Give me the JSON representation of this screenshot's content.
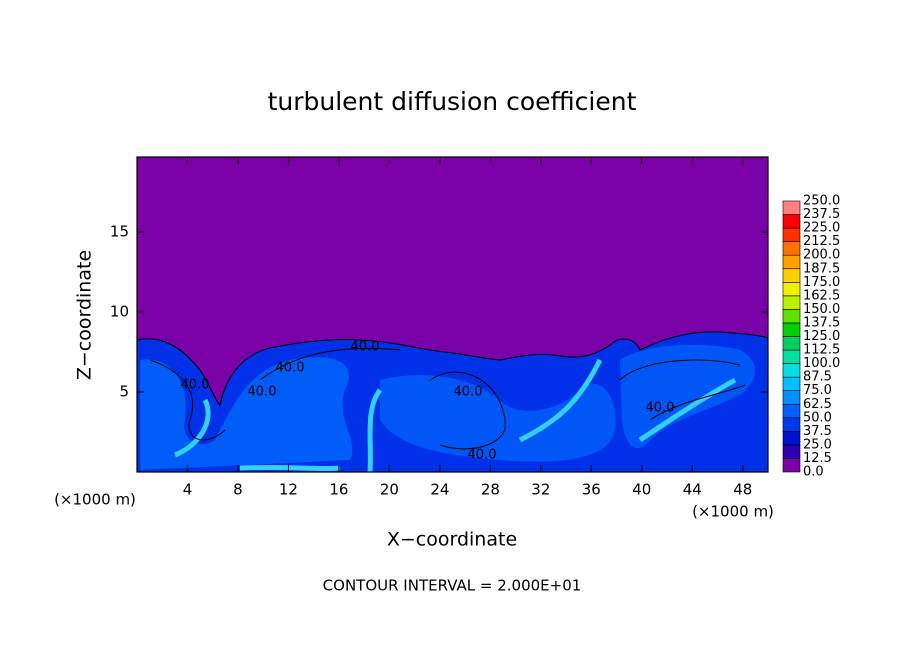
{
  "chart_data": {
    "type": "contour",
    "title": "turbulent diffusion coefficient",
    "x_label": "X−coordinate",
    "y_label": "Z−coordinate",
    "x_unit_left": "(×1000 m)",
    "x_unit_right": "(×1000 m)",
    "contour_interval_label": "CONTOUR INTERVAL = 2.000E+01",
    "xlim": [
      0,
      50
    ],
    "ylim": [
      0,
      19.7
    ],
    "xticks": [
      4,
      8,
      12,
      16,
      20,
      24,
      28,
      32,
      36,
      40,
      44,
      48
    ],
    "yticks": [
      5,
      10,
      15
    ],
    "contour_labels": [
      "40.0",
      "40.0",
      "40.0",
      "40.0",
      "40.0",
      "40.0",
      "40.0"
    ],
    "colorbar": {
      "levels": [
        {
          "value": 0,
          "label": "0.0"
        },
        {
          "value": 12.5,
          "label": "12.5"
        },
        {
          "value": 25,
          "label": "25.0"
        },
        {
          "value": 37.5,
          "label": "37.5"
        },
        {
          "value": 50,
          "label": "50.0"
        },
        {
          "value": 62.5,
          "label": "62.5"
        },
        {
          "value": 75,
          "label": "75.0"
        },
        {
          "value": 87.5,
          "label": "87.5"
        },
        {
          "value": 100,
          "label": "100.0"
        },
        {
          "value": 112.5,
          "label": "112.5"
        },
        {
          "value": 125,
          "label": "125.0"
        },
        {
          "value": 137.5,
          "label": "137.5"
        },
        {
          "value": 150,
          "label": "150.0"
        },
        {
          "value": 162.5,
          "label": "162.5"
        },
        {
          "value": 175,
          "label": "175.0"
        },
        {
          "value": 187.5,
          "label": "187.5"
        },
        {
          "value": 200,
          "label": "200.0"
        },
        {
          "value": 212.5,
          "label": "212.5"
        },
        {
          "value": 225,
          "label": "225.0"
        },
        {
          "value": 237.5,
          "label": "237.5"
        },
        {
          "value": 250,
          "label": "250.0"
        }
      ],
      "colors": [
        "#7a00a8",
        "#2a00b0",
        "#0010d0",
        "#0038f0",
        "#0060ff",
        "#0090ff",
        "#00c0ff",
        "#00e0e0",
        "#00e0a0",
        "#00d060",
        "#00d000",
        "#60e000",
        "#c0f000",
        "#f0f000",
        "#ffd000",
        "#ffa000",
        "#ff7000",
        "#ff3000",
        "#ff0000",
        "#ff8080"
      ]
    }
  }
}
